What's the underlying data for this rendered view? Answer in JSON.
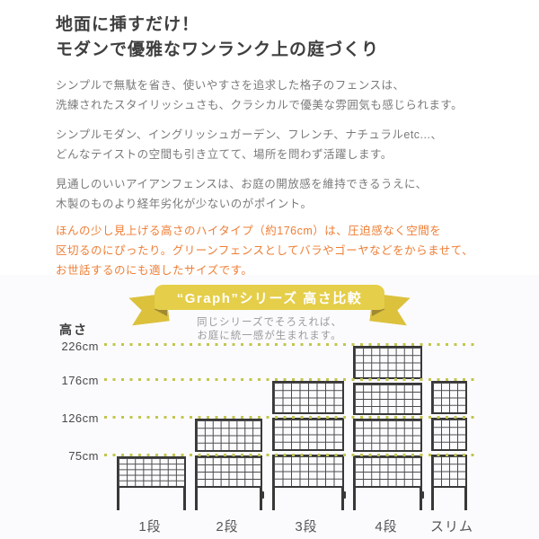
{
  "intro": {
    "heading": {
      "line1": "地面に挿すだけ！",
      "line2": "モダンで優雅なワンランク上の庭づくり"
    },
    "paragraphs": [
      {
        "lines": [
          "シンプルで無駄を省き、使いやすさを追求した格子のフェンスは、",
          "洗練されたスタイリッシュさも、クラシカルで優美な雰囲気も感じられます。"
        ]
      },
      {
        "lines": [
          "シンプルモダン、イングリッシュガーデン、フレンチ、ナチュラルetc...、",
          "どんなテイストの空間も引き立てて、場所を問わず活躍します。"
        ]
      },
      {
        "lines": [
          "見通しのいいアイアンフェンスは、お庭の開放感を維持できるうえに、",
          "木製のものより経年劣化が少ないのがポイント。"
        ]
      }
    ],
    "highlight": {
      "color": "#ee7e35",
      "lines": [
        "ほんの少し見上げる高さのハイタイプ（約176cm）は、圧迫感なく空間を",
        "区切るのにぴったり。グリーンフェンスとしてバラやゴーヤなどをからませて、",
        "お世話するのにも適したサイズです。"
      ]
    }
  },
  "ribbon": {
    "title": "“Graph”シリーズ 高さ比較",
    "subtitle_line1": "同じシリーズでそろえれば、",
    "subtitle_line2": "お庭に統一感が生まれます。",
    "band_color": "#e5ce49",
    "tail_color": "#dcc13d",
    "fold_color": "#a18931"
  },
  "chart": {
    "axis_title": "高さ",
    "ticks": [
      "226cm",
      "176cm",
      "126cm",
      "75cm"
    ],
    "fence_labels": [
      "1段",
      "2段",
      "3段",
      "4段",
      "スリム"
    ],
    "dot_color": "#c2c64c",
    "fence_color": "#383838",
    "text_color": "#4a4a4a"
  },
  "chart_data": {
    "type": "bar",
    "title": "“Graph”シリーズ 高さ比較",
    "subtitle": "同じシリーズでそろえれば、お庭に統一感が生まれます。",
    "categories": [
      "1段",
      "2段",
      "3段",
      "4段",
      "スリム"
    ],
    "values": [
      75,
      126,
      176,
      226,
      176
    ],
    "series_note_tiers": [
      1,
      2,
      3,
      4,
      3
    ],
    "ylabel": "高さ",
    "yticks_cm": [
      226,
      176,
      126,
      75
    ],
    "ylim": [
      0,
      226
    ],
    "unit": "cm",
    "grid": "dotted-horizontal",
    "legend_position": "none"
  }
}
